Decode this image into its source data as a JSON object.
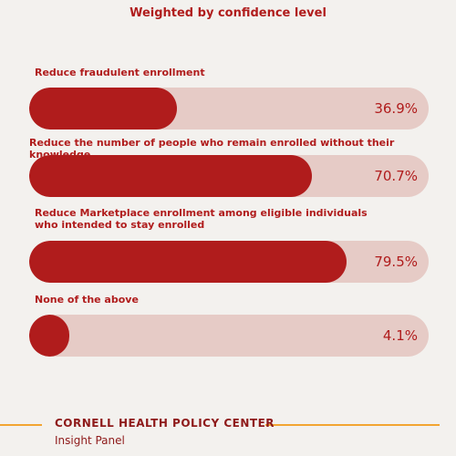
{
  "chart_data": {
    "type": "bar",
    "subtitle": "Weighted by confidence level",
    "orientation": "horizontal",
    "xlim": [
      0,
      100
    ],
    "categories": [
      "Reduce fraudulent enrollment",
      "Reduce the number of people who remain enrolled without their knowledge",
      "Reduce Marketplace enrollment among eligible individuals who intended to stay enrolled",
      "None of the above"
    ],
    "values": [
      36.9,
      70.7,
      79.5,
      4.1
    ],
    "value_labels": [
      "36.9%",
      "70.7%",
      "79.5%",
      "4.1%"
    ],
    "colors": {
      "fill": "#b01c1c",
      "track": "#e6cbc6",
      "accent": "#f2a531"
    }
  },
  "footer": {
    "org": "CORNELL HEALTH POLICY CENTER",
    "panel": "Insight Panel"
  }
}
